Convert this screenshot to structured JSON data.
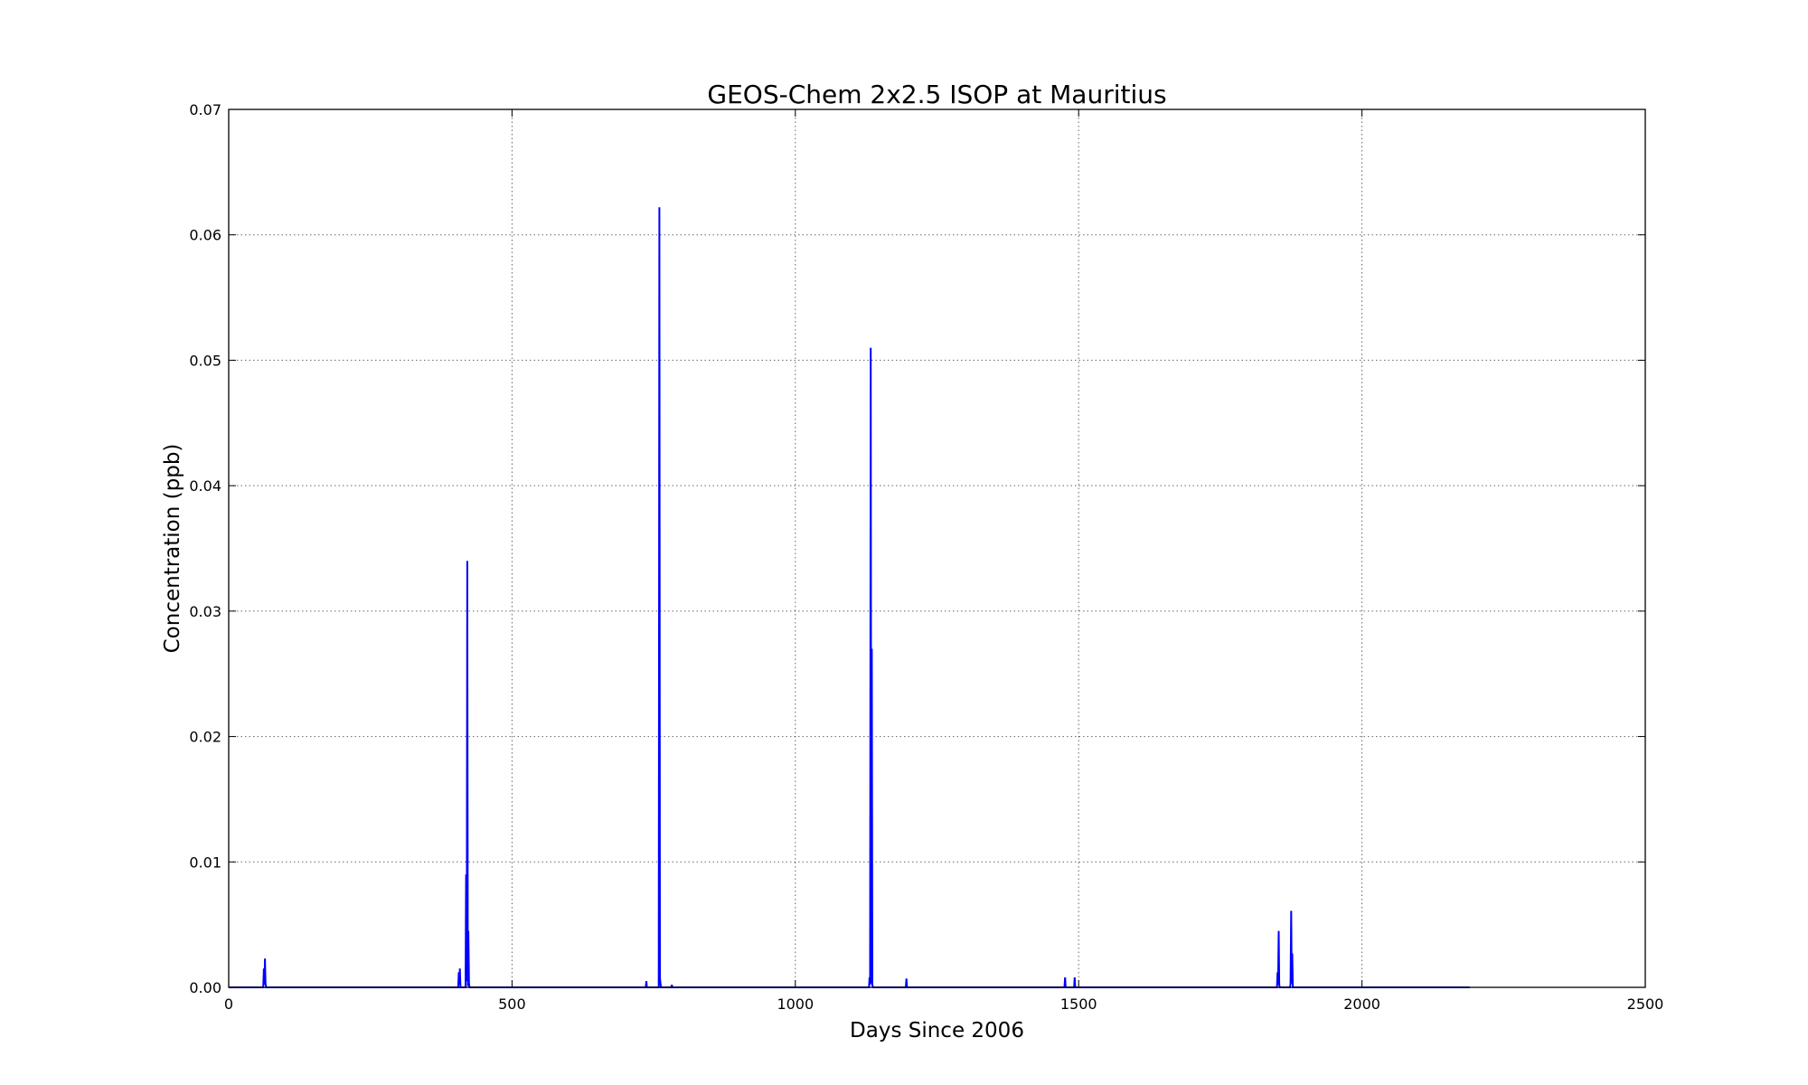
{
  "chart_data": {
    "type": "line",
    "title": "GEOS-Chem 2x2.5 ISOP at Mauritius",
    "xlabel": "Days Since 2006",
    "ylabel": "Concentration (ppb)",
    "xlim": [
      0,
      2500
    ],
    "ylim": [
      0,
      0.07
    ],
    "xticks": [
      0,
      500,
      1000,
      1500,
      2000,
      2500
    ],
    "xtick_labels": [
      "0",
      "500",
      "1000",
      "1500",
      "2000",
      "2500"
    ],
    "yticks": [
      0,
      0.01,
      0.02,
      0.03,
      0.04,
      0.05,
      0.06,
      0.07
    ],
    "ytick_labels": [
      "0.00",
      "0.01",
      "0.02",
      "0.03",
      "0.04",
      "0.05",
      "0.06",
      "0.07"
    ],
    "grid": true,
    "line_color": "#0000ff",
    "series": [
      {
        "x": [
          0,
          50,
          61,
          62,
          63,
          64,
          65,
          66,
          67,
          180,
          405,
          406,
          407,
          408,
          409,
          418,
          419,
          420,
          421,
          422,
          423,
          424,
          425,
          700,
          736,
          737,
          738,
          759,
          760,
          761,
          762,
          763,
          781,
          782,
          783,
          885,
          1130,
          1131,
          1132,
          1133,
          1134,
          1135,
          1136,
          1137,
          1195,
          1196,
          1197,
          1475,
          1476,
          1477,
          1492,
          1493,
          1494,
          1850,
          1851,
          1852,
          1853,
          1854,
          1855,
          1873,
          1874,
          1875,
          1876,
          1877,
          1878,
          2190
        ],
        "y": [
          0,
          0,
          0,
          0.0015,
          0.0002,
          0.0023,
          0.0003,
          0,
          0,
          0,
          0,
          0.0012,
          0.0002,
          0.0015,
          0,
          0,
          0.009,
          0.0005,
          0.034,
          0.0001,
          0.0045,
          0.0003,
          0,
          0,
          0,
          0.0005,
          0,
          0,
          0.0622,
          0.0008,
          0.0003,
          0,
          0,
          0.0002,
          0,
          0,
          0,
          0.0008,
          0.0002,
          0.051,
          0.0003,
          0.027,
          0.0002,
          0,
          0,
          0.0007,
          0,
          0,
          0.0008,
          0,
          0,
          0.0008,
          0,
          0,
          0.0012,
          0.0002,
          0.0045,
          0.0002,
          0,
          0,
          0.0003,
          0.0061,
          0.0003,
          0.0027,
          0,
          0
        ]
      }
    ]
  }
}
